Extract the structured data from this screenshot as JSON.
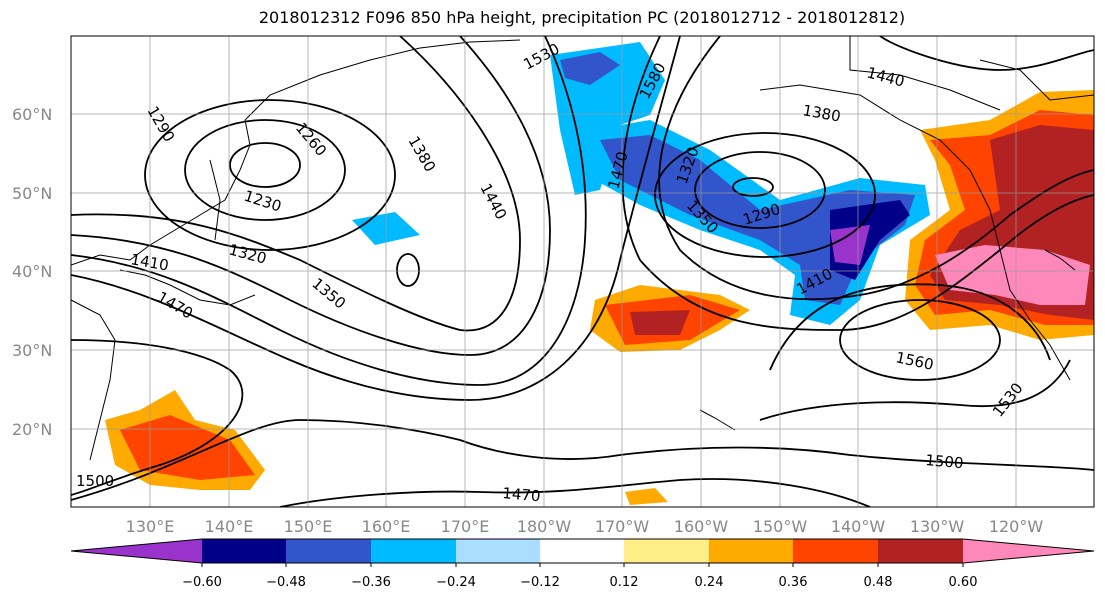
{
  "title": "2018012312 F096 850 hPa height, precipitation PC (2018012712 - 2018012812)",
  "map": {
    "lat_labels": [
      "60°N",
      "50°N",
      "40°N",
      "30°N",
      "20°N"
    ],
    "lon_labels": [
      "130°E",
      "140°E",
      "150°E",
      "160°E",
      "170°E",
      "180°W",
      "170°W",
      "160°W",
      "150°W",
      "140°W",
      "130°W",
      "120°W"
    ],
    "contour_labels": [
      "1530",
      "1580",
      "1440",
      "1380",
      "1290",
      "1260",
      "1380",
      "1440",
      "1470",
      "1320",
      "1230",
      "1320",
      "1410",
      "1350",
      "1290",
      "1350",
      "1410",
      "1470",
      "1560",
      "1530",
      "1500",
      "1470",
      "1500"
    ],
    "field": "850 hPa height",
    "shading": "precipitation PC"
  },
  "colorbar": {
    "ticks": [
      "−0.60",
      "−0.48",
      "−0.36",
      "−0.24",
      "−0.12",
      "0.12",
      "0.24",
      "0.36",
      "0.48",
      "0.60"
    ],
    "colors": [
      "#9933cc",
      "#000088",
      "#3355cc",
      "#00bbff",
      "#aaddff",
      "#ffffff",
      "#ffee88",
      "#ffaa00",
      "#ff4400",
      "#b22222",
      "#ff88bb"
    ]
  }
}
